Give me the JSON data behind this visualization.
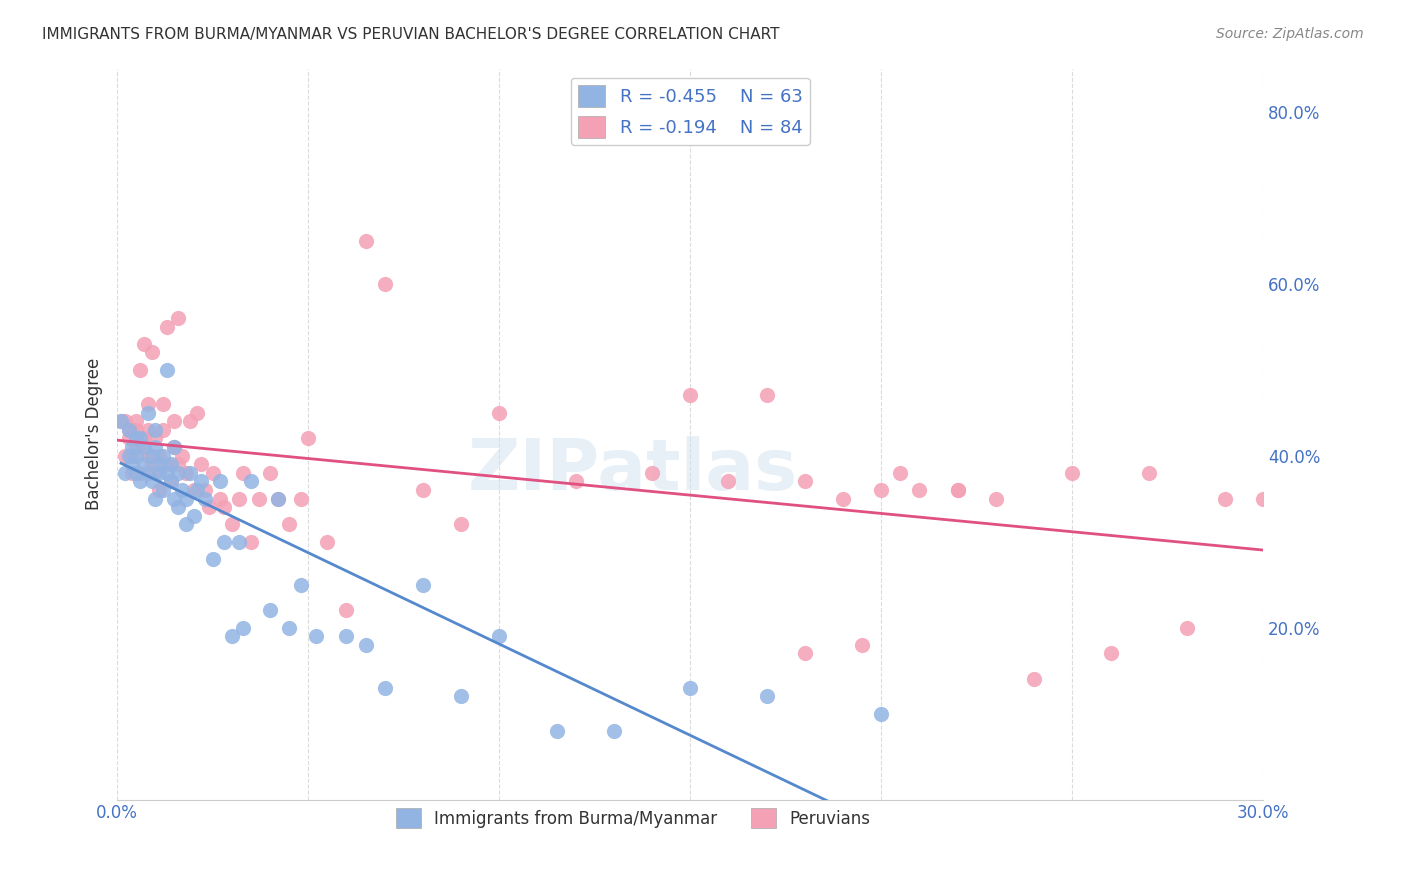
{
  "title": "IMMIGRANTS FROM BURMA/MYANMAR VS PERUVIAN BACHELOR'S DEGREE CORRELATION CHART",
  "source": "Source: ZipAtlas.com",
  "xlabel": "",
  "ylabel": "Bachelor's Degree",
  "xlim": [
    0.0,
    0.3
  ],
  "ylim": [
    0.0,
    0.85
  ],
  "xticks": [
    0.0,
    0.05,
    0.1,
    0.15,
    0.2,
    0.25,
    0.3
  ],
  "xtick_labels": [
    "0.0%",
    "",
    "",
    "",
    "",
    "",
    "30.0%"
  ],
  "ytick_labels_right": [
    "20.0%",
    "40.0%",
    "60.0%",
    "80.0%"
  ],
  "yticks_right": [
    0.2,
    0.4,
    0.6,
    0.8
  ],
  "legend_r1": "R = -0.455",
  "legend_n1": "N = 63",
  "legend_r2": "R = -0.194",
  "legend_n2": "N = 84",
  "color_blue": "#92b4e3",
  "color_pink": "#f4a0b5",
  "color_line_blue": "#5588cc",
  "color_line_pink": "#e05080",
  "color_text": "#4472c4",
  "color_grid": "#cccccc",
  "watermark": "ZIPatlas",
  "blue_x": [
    0.001,
    0.002,
    0.003,
    0.003,
    0.004,
    0.004,
    0.005,
    0.005,
    0.005,
    0.006,
    0.006,
    0.007,
    0.007,
    0.008,
    0.008,
    0.009,
    0.009,
    0.01,
    0.01,
    0.01,
    0.011,
    0.011,
    0.012,
    0.012,
    0.013,
    0.013,
    0.014,
    0.014,
    0.015,
    0.015,
    0.016,
    0.016,
    0.017,
    0.018,
    0.018,
    0.019,
    0.02,
    0.021,
    0.022,
    0.023,
    0.025,
    0.027,
    0.028,
    0.03,
    0.032,
    0.033,
    0.035,
    0.04,
    0.042,
    0.045,
    0.048,
    0.052,
    0.06,
    0.065,
    0.07,
    0.08,
    0.09,
    0.1,
    0.115,
    0.13,
    0.15,
    0.17,
    0.2
  ],
  "blue_y": [
    0.44,
    0.38,
    0.4,
    0.43,
    0.39,
    0.41,
    0.42,
    0.38,
    0.4,
    0.37,
    0.42,
    0.41,
    0.39,
    0.45,
    0.38,
    0.4,
    0.37,
    0.43,
    0.35,
    0.41,
    0.38,
    0.39,
    0.36,
    0.4,
    0.5,
    0.38,
    0.37,
    0.39,
    0.35,
    0.41,
    0.34,
    0.38,
    0.36,
    0.32,
    0.35,
    0.38,
    0.33,
    0.36,
    0.37,
    0.35,
    0.28,
    0.37,
    0.3,
    0.19,
    0.3,
    0.2,
    0.37,
    0.22,
    0.35,
    0.2,
    0.25,
    0.19,
    0.19,
    0.18,
    0.13,
    0.25,
    0.12,
    0.19,
    0.08,
    0.08,
    0.13,
    0.12,
    0.1
  ],
  "pink_x": [
    0.001,
    0.002,
    0.002,
    0.003,
    0.003,
    0.004,
    0.004,
    0.004,
    0.005,
    0.005,
    0.005,
    0.006,
    0.006,
    0.006,
    0.007,
    0.007,
    0.008,
    0.008,
    0.008,
    0.009,
    0.009,
    0.01,
    0.01,
    0.011,
    0.011,
    0.012,
    0.012,
    0.013,
    0.013,
    0.014,
    0.015,
    0.015,
    0.016,
    0.016,
    0.017,
    0.018,
    0.019,
    0.02,
    0.021,
    0.022,
    0.023,
    0.024,
    0.025,
    0.027,
    0.028,
    0.03,
    0.032,
    0.033,
    0.035,
    0.037,
    0.04,
    0.042,
    0.045,
    0.048,
    0.05,
    0.055,
    0.06,
    0.065,
    0.07,
    0.08,
    0.09,
    0.1,
    0.12,
    0.14,
    0.16,
    0.18,
    0.2,
    0.21,
    0.22,
    0.25,
    0.27,
    0.29,
    0.15,
    0.17,
    0.19,
    0.23,
    0.24,
    0.26,
    0.28,
    0.3,
    0.18,
    0.195,
    0.205,
    0.22
  ],
  "pink_y": [
    0.44,
    0.4,
    0.44,
    0.42,
    0.43,
    0.38,
    0.4,
    0.43,
    0.41,
    0.43,
    0.44,
    0.38,
    0.41,
    0.5,
    0.42,
    0.53,
    0.4,
    0.43,
    0.46,
    0.39,
    0.52,
    0.42,
    0.38,
    0.4,
    0.36,
    0.43,
    0.46,
    0.39,
    0.55,
    0.37,
    0.41,
    0.44,
    0.39,
    0.56,
    0.4,
    0.38,
    0.44,
    0.36,
    0.45,
    0.39,
    0.36,
    0.34,
    0.38,
    0.35,
    0.34,
    0.32,
    0.35,
    0.38,
    0.3,
    0.35,
    0.38,
    0.35,
    0.32,
    0.35,
    0.42,
    0.3,
    0.22,
    0.65,
    0.6,
    0.36,
    0.32,
    0.45,
    0.37,
    0.38,
    0.37,
    0.37,
    0.36,
    0.36,
    0.36,
    0.38,
    0.38,
    0.35,
    0.47,
    0.47,
    0.35,
    0.35,
    0.14,
    0.17,
    0.2,
    0.35,
    0.17,
    0.18,
    0.38,
    0.36
  ]
}
